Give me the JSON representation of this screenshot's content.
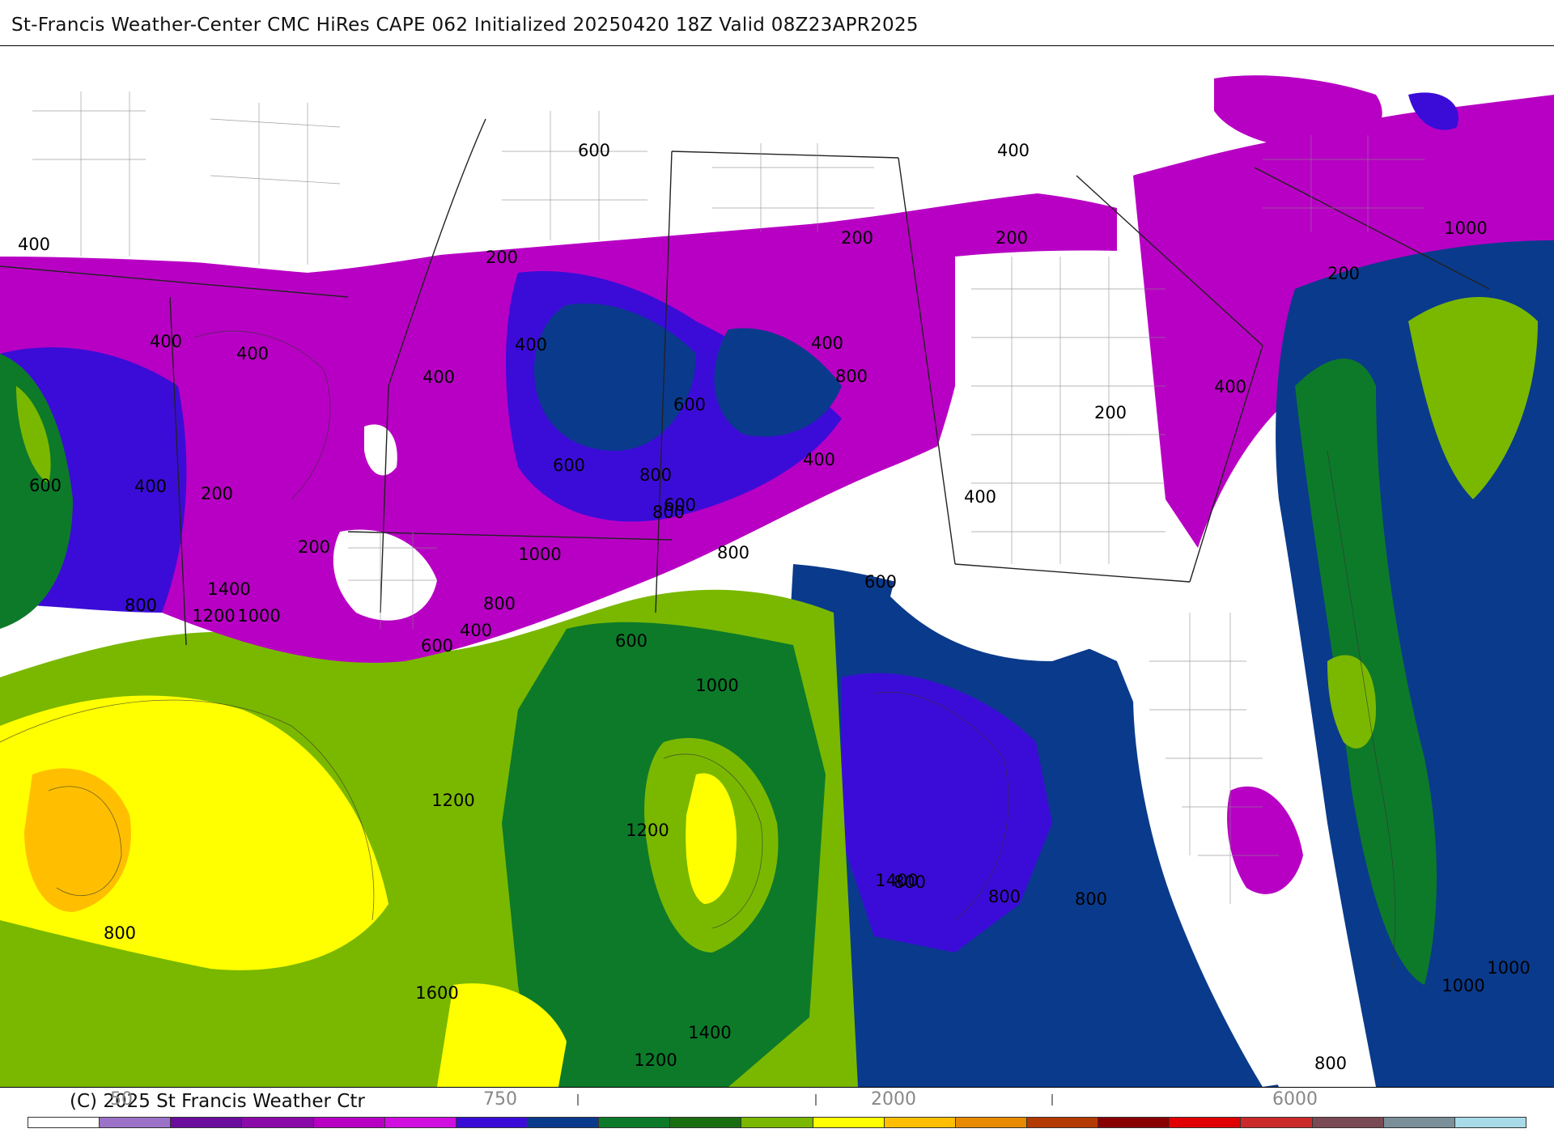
{
  "header": {
    "title": "St-Francis Weather-Center CMC HiRes CAPE  062 Initialized 20250420 18Z Valid 08Z23APR2025"
  },
  "footer": {
    "copyright": "(C) 2025 St Francis Weather Ctr"
  },
  "legend": {
    "tick_labels": [
      "50",
      "750",
      "2000",
      "6000"
    ],
    "colors": [
      "#ffffff",
      "#9b72c8",
      "#6a0c9e",
      "#8a0aaa",
      "#b800c4",
      "#d10ee0",
      "#3b0cd8",
      "#0a3a8c",
      "#0d7a2a",
      "#1a6e12",
      "#7ab800",
      "#ffff00",
      "#ffbf00",
      "#e88a00",
      "#b33a00",
      "#8a0000",
      "#e00000",
      "#cc2a2a",
      "#7a4a55",
      "#7a8f98",
      "#a8dbe8"
    ]
  },
  "map": {
    "contour_labels": [
      "400",
      "200",
      "600",
      "400",
      "200",
      "200",
      "400",
      "1000",
      "200",
      "400",
      "800",
      "400",
      "400",
      "400",
      "600",
      "400",
      "800",
      "200",
      "400",
      "600",
      "600",
      "800",
      "400",
      "200",
      "600",
      "200",
      "600",
      "800",
      "400",
      "1400",
      "1200",
      "1000",
      "800",
      "800",
      "400",
      "600",
      "1000",
      "600",
      "1000",
      "1200",
      "1200",
      "1400",
      "800",
      "800",
      "800",
      "1600",
      "1400",
      "1200",
      "1000",
      "1000",
      "800",
      "800"
    ]
  }
}
